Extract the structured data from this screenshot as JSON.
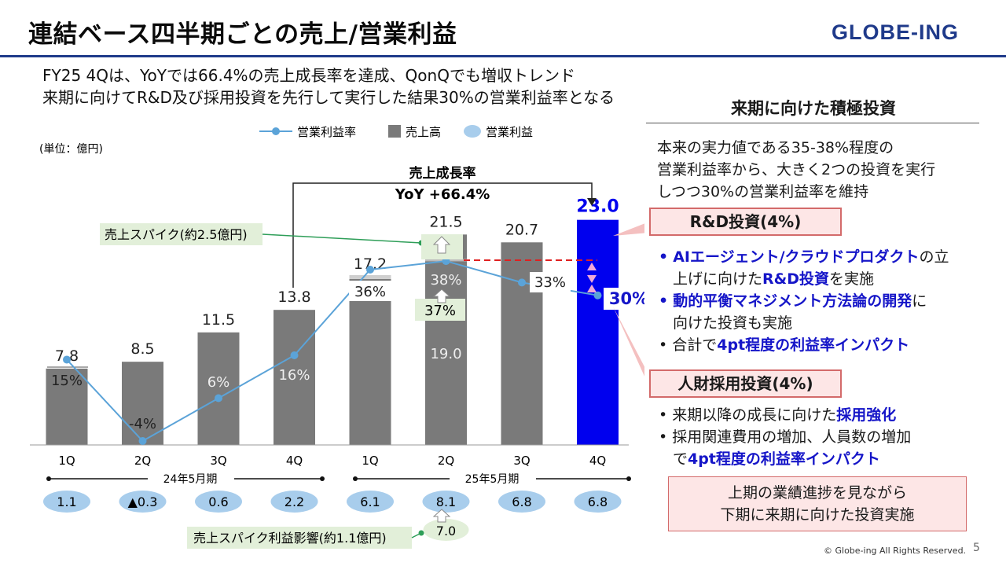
{
  "header": {
    "title": "連結ベース四半期ごとの売上/営業利益",
    "brand": "GLOBE-ING",
    "subtitle_line1": "FY25 4Qは、YoYでは66.4%の売上成長率を達成、QonQでも増収トレンド",
    "subtitle_line2": "来期に向けてR&D及び採用投資を先行して実行した結果30%の営業利益率となる"
  },
  "chart_data": {
    "type": "bar",
    "unit_label": "(単位：億円)",
    "legend": [
      "営業利益率",
      "売上高",
      "営業利益"
    ],
    "categories": [
      "1Q",
      "2Q",
      "3Q",
      "4Q",
      "1Q",
      "2Q",
      "3Q",
      "4Q"
    ],
    "groups": [
      {
        "label": "24年5月期",
        "span": [
          0,
          3
        ]
      },
      {
        "label": "25年5月期",
        "span": [
          4,
          7
        ]
      }
    ],
    "series": [
      {
        "name": "売上高",
        "type": "bar",
        "values": [
          7.8,
          8.5,
          11.5,
          13.8,
          17.2,
          21.5,
          20.7,
          23.0
        ],
        "labels": [
          "7.8",
          "8.5",
          "11.5",
          "13.8",
          "17.2",
          "21.5",
          "20.7",
          "23.0"
        ]
      },
      {
        "name": "営業利益率",
        "type": "line",
        "values": [
          15,
          -4,
          6,
          16,
          36,
          38,
          33,
          30
        ],
        "labels": [
          "15%",
          "-4%",
          "6%",
          "16%",
          "36%",
          "38%",
          "33%",
          "30%"
        ]
      },
      {
        "name": "営業利益",
        "type": "badge",
        "values": [
          1.1,
          -0.3,
          0.6,
          2.2,
          6.1,
          8.1,
          6.8,
          6.8
        ],
        "labels": [
          "1.1",
          "▲0.3",
          "0.6",
          "2.2",
          "6.1",
          "8.1",
          "6.8",
          "6.8"
        ]
      }
    ],
    "y_left_range": [
      0,
      25
    ],
    "y_right_range": [
      -5,
      45
    ],
    "highlight_index": 7,
    "colors": {
      "bar": "#7a7a7a",
      "highlight": "#0000ee",
      "line": "#5ba3d8",
      "badge": "#a8cdec",
      "callout": "#e2efd9"
    },
    "annotations": {
      "growth_title": "売上成長率",
      "growth_value": "YoY +66.4%",
      "spike_callout": "売上スパイク(約2.5億円)",
      "spike_base_sales": "19.0",
      "spike_base_margin": "37%",
      "spike_profit_callout": "売上スパイク利益影響(約1.1億円)",
      "spike_base_profit": "7.0"
    }
  },
  "side": {
    "heading": "来期に向けた積極投資",
    "intro": [
      "本来の実力値である35-38%程度の",
      "営業利益率から、大きく2つの投資を実行",
      "しつつ30%の営業利益率を維持"
    ],
    "rd": {
      "tag": "R&D投資(4%)",
      "b1_blue": "AIエージェント/クラウドプロダクト",
      "b1_rest": "の立",
      "b1_line2_pre": "上げに向けた",
      "b1_line2_blue": "R&D投資",
      "b1_line2_post": "を実施",
      "b2_blue": "動的平衡マネジメント方法論の開発",
      "b2_rest": "に",
      "b2_line2": "向けた投資も実施",
      "b3_pre": "合計で",
      "b3_blue": "4pt程度の利益率インパクト"
    },
    "hr": {
      "tag": "人財採用投資(4%)",
      "b1_pre": "来期以降の成長に向けた",
      "b1_blue": "採用強化",
      "b2": "採用関連費用の増加、人員数の増加",
      "b2_line2_pre": "で",
      "b2_line2_blue": "4pt程度の利益率インパクト"
    },
    "box_line1": "上期の業績進捗を見ながら",
    "box_line2": "下期に来期に向けた投資実施"
  },
  "footer": {
    "copyright": "© Globe-ing All Rights Reserved.",
    "page": "5"
  }
}
